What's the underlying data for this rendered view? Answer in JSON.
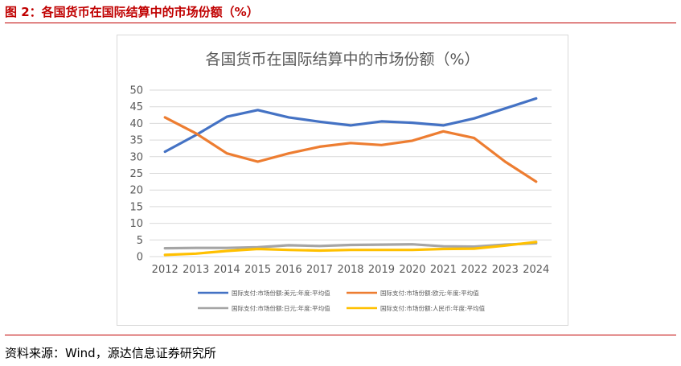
{
  "caption": "图 2：各国货币在国际结算中的市场份额（%）",
  "source": "资料来源：Wind，源达信息证券研究所",
  "chart_data": {
    "type": "line",
    "title": "各国货币在国际结算中的市场份额（%）",
    "xlabel": "",
    "ylabel": "",
    "x": [
      "2012",
      "2013",
      "2014",
      "2015",
      "2016",
      "2017",
      "2018",
      "2019",
      "2020",
      "2021",
      "2022",
      "2023",
      "2024"
    ],
    "ylim": [
      0,
      50
    ],
    "yticks": [
      0,
      5,
      10,
      15,
      20,
      25,
      30,
      35,
      40,
      45,
      50
    ],
    "grid": true,
    "legend_position": "bottom",
    "series": [
      {
        "name": "国际支付:市场份额:美元:年度:平均值",
        "color": "#4472c4",
        "values": [
          31.5,
          36.5,
          42.0,
          44.0,
          41.8,
          40.5,
          39.4,
          40.6,
          40.2,
          39.4,
          41.5,
          44.5,
          47.5
        ]
      },
      {
        "name": "国际支付:市场份额:欧元:年度:平均值",
        "color": "#ed7d31",
        "values": [
          41.8,
          37.0,
          31.0,
          28.5,
          31.0,
          33.0,
          34.1,
          33.5,
          34.8,
          37.6,
          35.6,
          28.5,
          22.5
        ]
      },
      {
        "name": "国际支付:市场份额:日元:年度:平均值",
        "color": "#a5a5a5",
        "values": [
          2.5,
          2.6,
          2.6,
          2.8,
          3.4,
          3.2,
          3.5,
          3.6,
          3.7,
          3.1,
          3.0,
          3.6,
          4.0
        ]
      },
      {
        "name": "国际支付:市场份额:人民币:年度:平均值",
        "color": "#ffc000",
        "values": [
          0.5,
          0.9,
          1.7,
          2.3,
          2.0,
          1.8,
          2.0,
          2.0,
          2.0,
          2.3,
          2.4,
          3.3,
          4.4
        ]
      }
    ]
  }
}
